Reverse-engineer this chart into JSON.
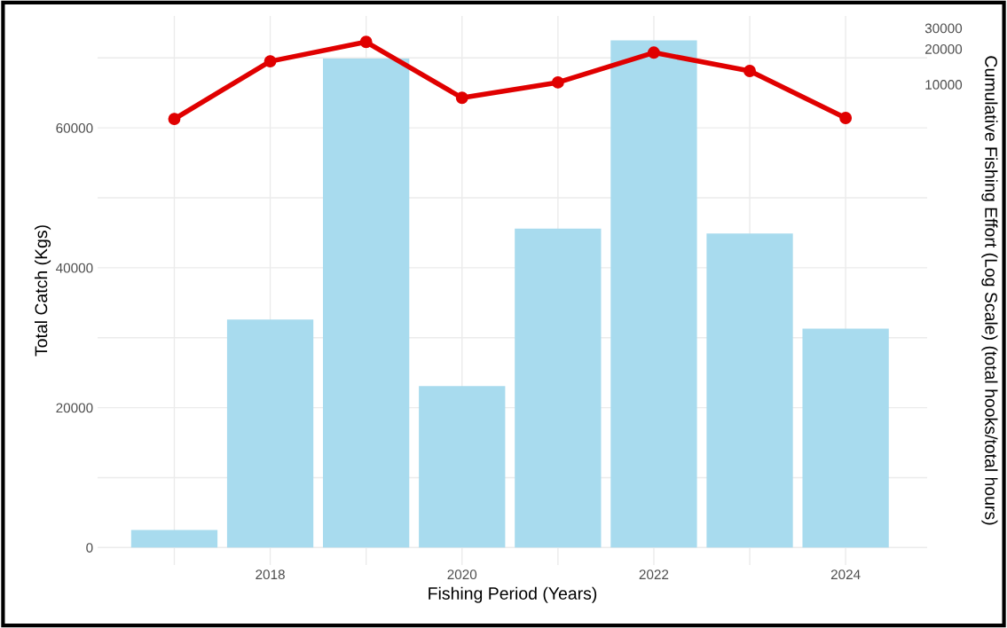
{
  "chart_data": {
    "type": "bar",
    "xlabel": "Fishing Period (Years)",
    "ylabel": "Total Catch (Kgs)",
    "y2label": "Cumulative Fishing Effort (Log Scale) (total hooks/total hours)",
    "x": [
      2017,
      2018,
      2019,
      2020,
      2021,
      2022,
      2023,
      2024
    ],
    "series": [
      {
        "color": "#a8dbee",
        "values": [
          2500,
          32600,
          69900,
          23100,
          45600,
          72500,
          44900,
          31300
        ]
      },
      {
        "type": "line",
        "axis": "y2",
        "color": "#e00000",
        "marker": "circle",
        "line_style": "solid",
        "values": [
          5100,
          15700,
          22900,
          7700,
          10400,
          18600,
          13000,
          5200
        ]
      }
    ],
    "xlim": [
      2016.2,
      2024.85
    ],
    "xticks": [
      {
        "value": 2017,
        "label": null
      },
      2018,
      {
        "value": 2019,
        "label": null
      },
      2020,
      {
        "value": 2021,
        "label": null
      },
      2022,
      {
        "value": 2023,
        "label": null
      },
      2024
    ],
    "ylim": [
      -2500,
      76000
    ],
    "yticks": [
      0,
      {
        "value": 10000,
        "label": null
      },
      20000,
      {
        "value": 30000,
        "label": null
      },
      40000,
      {
        "value": 50000,
        "label": null
      },
      60000,
      {
        "value": 70000,
        "label": null
      }
    ],
    "y2lim": [
      0.85,
      38000
    ],
    "y2ticks": [
      10000,
      20000,
      30000
    ],
    "log": "y2",
    "grid": true
  }
}
